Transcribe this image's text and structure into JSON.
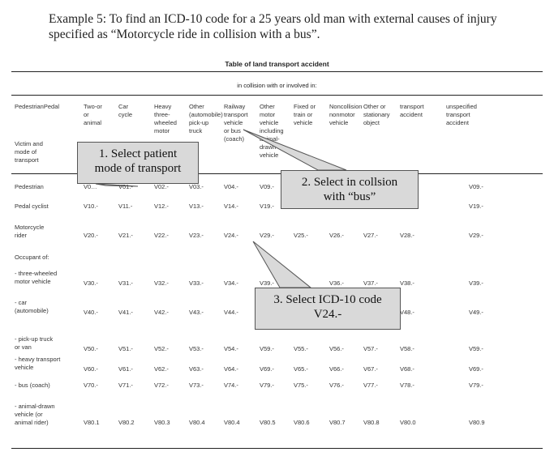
{
  "intro": "Example 5: To find an ICD-10 code for a 25 years old man with external causes of injury specified as “Motorcycle ride in collision with a bus”.",
  "table": {
    "title": "Table of land transport accident",
    "subtitle": "in collision with or involved in:",
    "corner_label": "PedestrianPedal",
    "victim_label": "Victim and\nmode of\ntransport",
    "columns": [
      "Two-or\nor\nanimal",
      "Car\ncycle",
      "Heavy\nthree-\nwheeled\nmotor",
      "Other\n(automobile)\npick-up\ntruck",
      "Railway\ntransport\nvehicle\nor bus\n(coach)",
      "Other\nmotor\nvehicle\nincluding\nanimal-\ndrawn\nvehicle",
      "Fixed or\ntrain or\nvehicle",
      "Noncollision\nnonmotor\nvehicle",
      "Other or\nstationary\nobject",
      "transport\naccident",
      "unspecified\ntransport\naccident"
    ],
    "occupant_label": "Occupant of:",
    "rows": [
      {
        "label": "Pedestrian",
        "codes": [
          "V0…",
          "V01.-",
          "V02.-",
          "V03.-",
          "V04.-",
          "V09.-",
          "",
          "",
          "",
          "",
          "V09.-"
        ]
      },
      {
        "label": "Pedal cyclist",
        "codes": [
          "V10.-",
          "V11.-",
          "V12.-",
          "V13.-",
          "V14.-",
          "V19.-",
          "",
          "",
          "",
          "",
          "V19.-"
        ]
      },
      {
        "label": "Motorcycle\nrider",
        "codes": [
          "V20.-",
          "V21.-",
          "V22.-",
          "V23.-",
          "V24.-",
          "V29.-",
          "V25.-",
          "V26.-",
          "V27.-",
          "V28.-",
          "V29.-"
        ]
      },
      {
        "label": "- three-wheeled\n  motor vehicle",
        "codes": [
          "V30.-",
          "V31.-",
          "V32.-",
          "V33.-",
          "V34.-",
          "V39.-",
          "",
          "V36.-",
          "V37.-",
          "V38.-",
          "V39.-"
        ]
      },
      {
        "label": "- car\n  (automobile)",
        "codes": [
          "V40.-",
          "V41.-",
          "V42.-",
          "V43.-",
          "V44.-",
          "",
          "",
          "",
          "",
          "V48.-",
          "V49.-"
        ]
      },
      {
        "label": "- pick-up truck\n  or van",
        "codes": [
          "V50.-",
          "V51.-",
          "V52.-",
          "V53.-",
          "V54.-",
          "V59.-",
          "V55.-",
          "V56.-",
          "V57.-",
          "V58.-",
          "V59.-"
        ]
      },
      {
        "label": "- heavy transport\n  vehicle",
        "codes": [
          "V60.-",
          "V61.-",
          "V62.-",
          "V63.-",
          "V64.-",
          "V69.-",
          "V65.-",
          "V66.-",
          "V67.-",
          "V68.-",
          "V69.-"
        ]
      },
      {
        "label": "- bus (coach)",
        "codes": [
          "V70.-",
          "V71.-",
          "V72.-",
          "V73.-",
          "V74.-",
          "V79.-",
          "V75.-",
          "V76.-",
          "V77.-",
          "V78.-",
          "V79.-"
        ]
      },
      {
        "label": "- animal-drawn\n  vehicle (or\n  animal rider)",
        "codes": [
          "V80.1",
          "V80.2",
          "V80.3",
          "V80.4",
          "V80.4",
          "V80.5",
          "V80.6",
          "V80.7",
          "V80.8",
          "V80.0",
          "V80.9"
        ]
      }
    ]
  },
  "callouts": [
    {
      "text": "1. Select patient\n    mode of transport"
    },
    {
      "text": "2. Select in collsion\nwith “bus”"
    },
    {
      "text": "3. Select ICD-10 code\nV24.-"
    }
  ]
}
